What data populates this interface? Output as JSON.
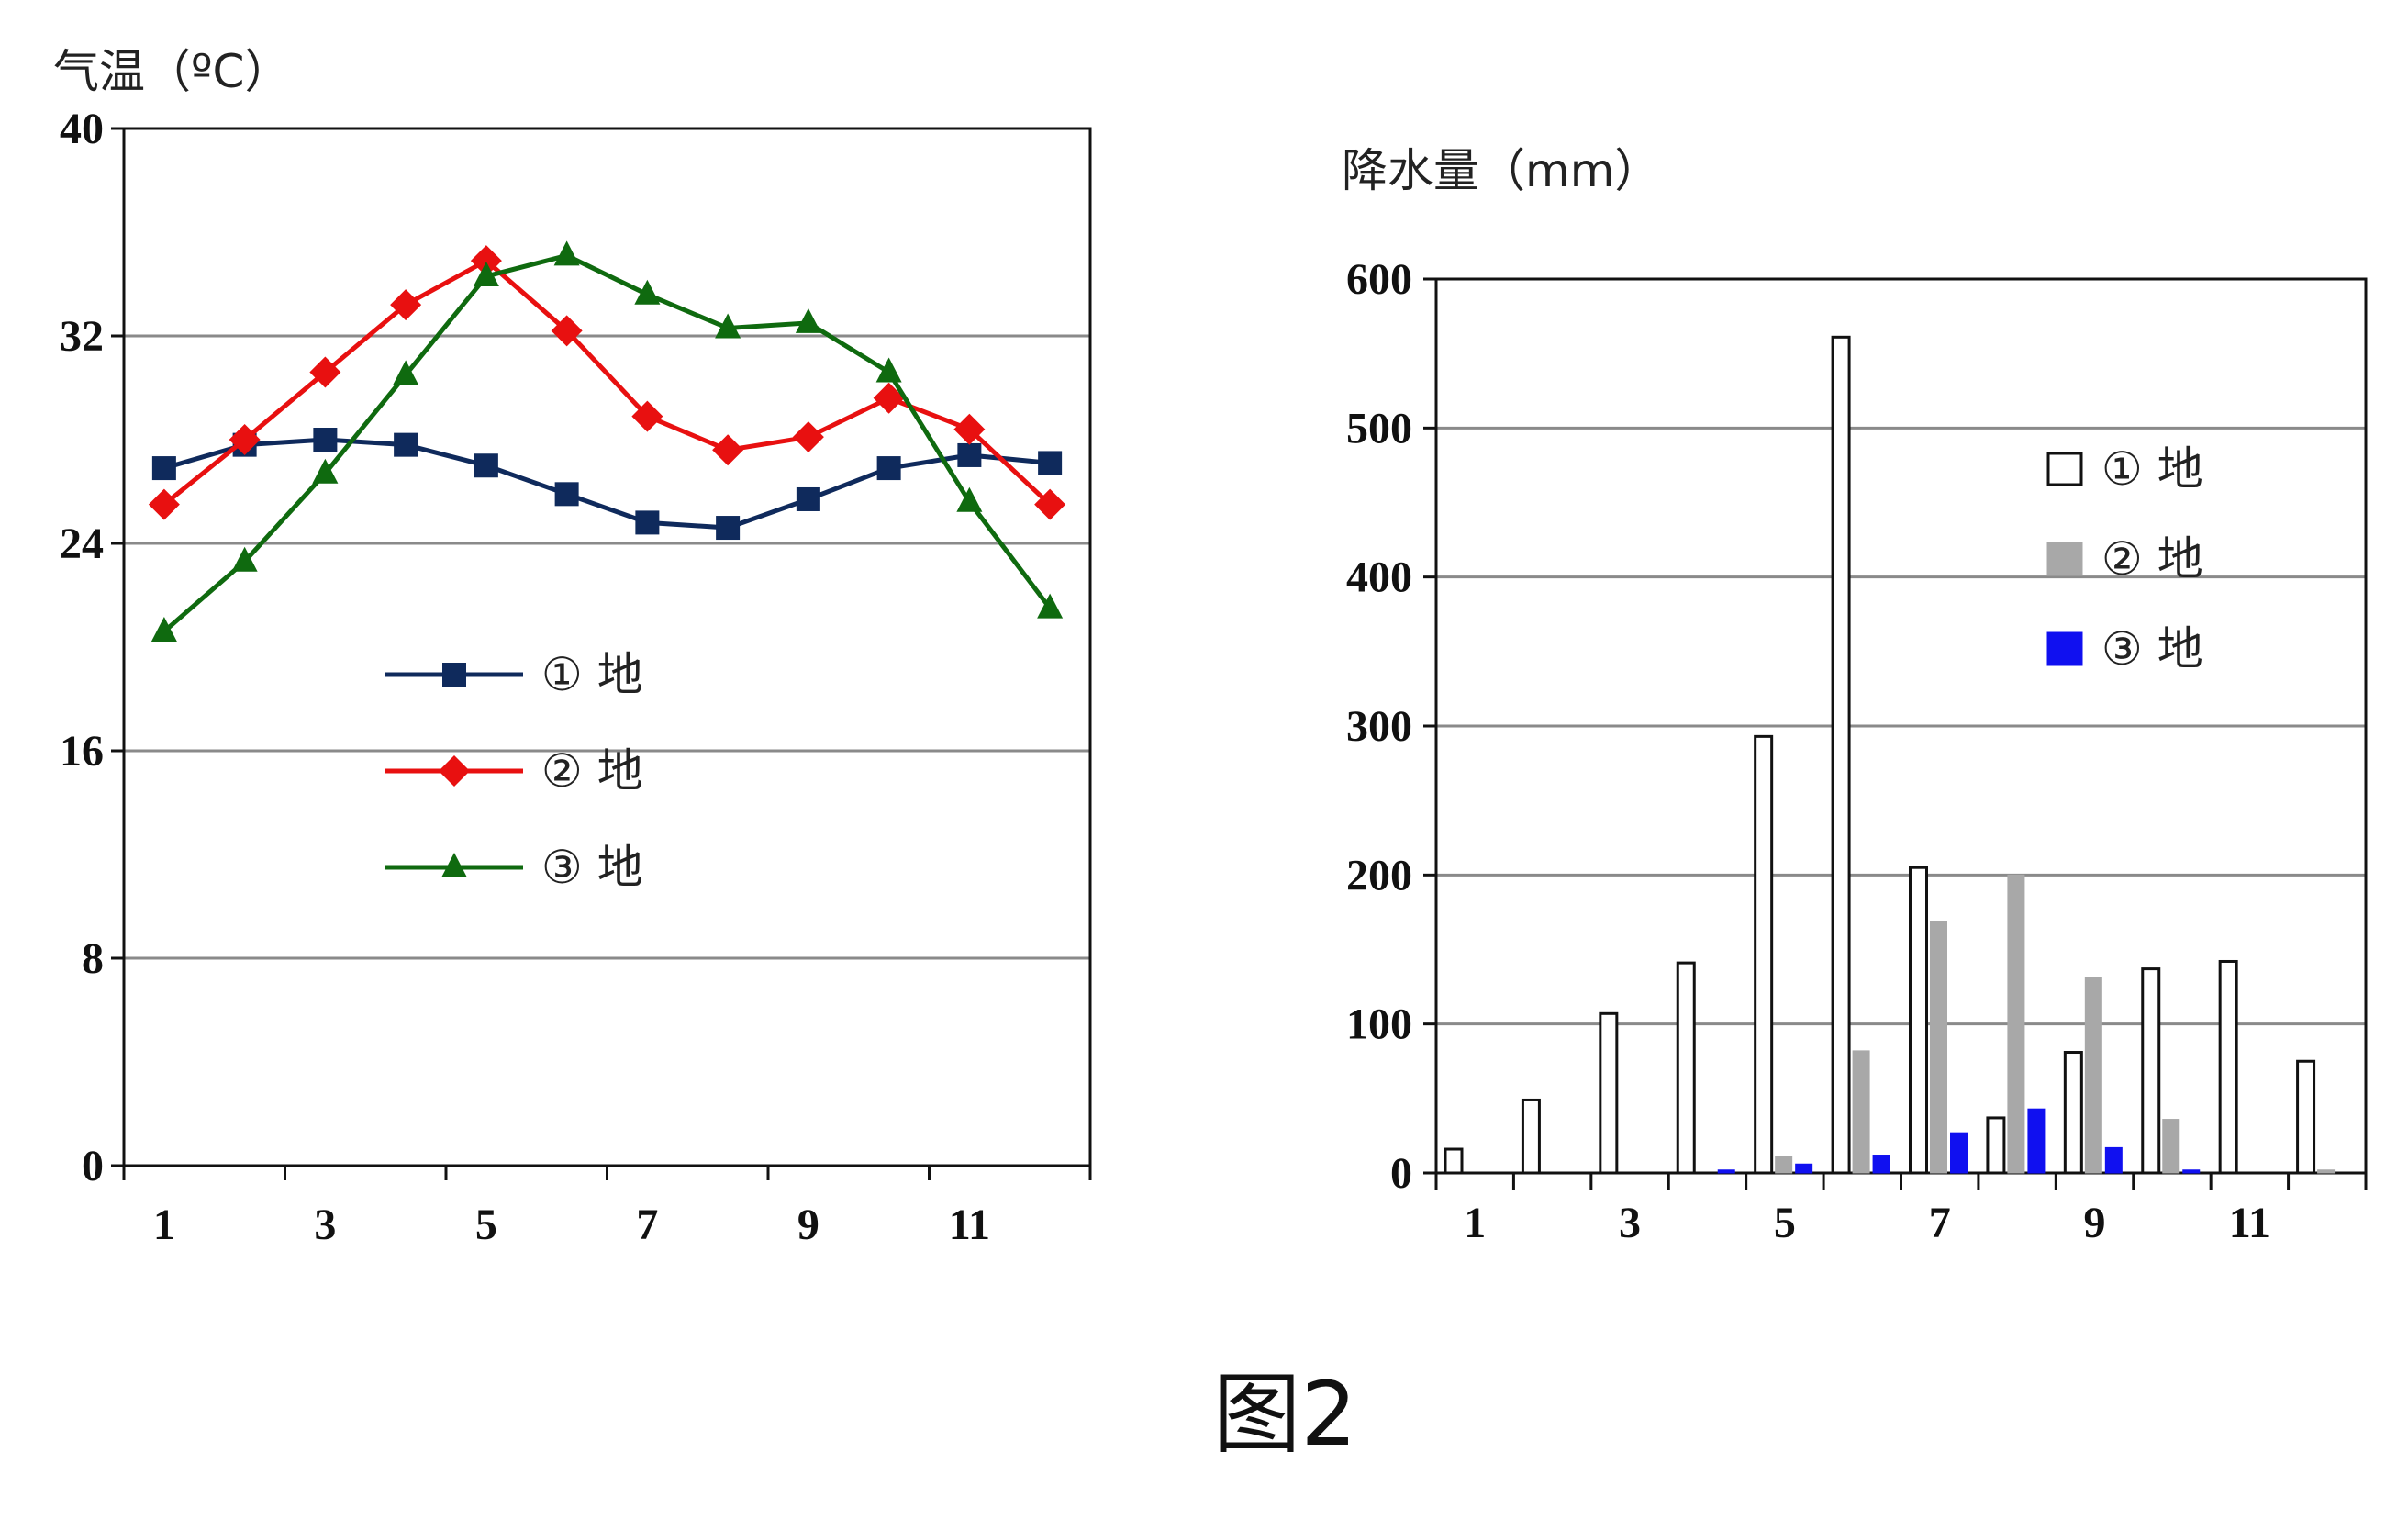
{
  "caption": "图2",
  "chart_data": [
    {
      "type": "line",
      "ylabel": "气温（ºC）",
      "ylim": [
        0,
        40
      ],
      "yticks": [
        0,
        8,
        16,
        24,
        32,
        40
      ],
      "x": [
        1,
        2,
        3,
        4,
        5,
        6,
        7,
        8,
        9,
        10,
        11,
        12
      ],
      "xtick_labels": [
        "1",
        "3",
        "5",
        "7",
        "9",
        "11"
      ],
      "grid": true,
      "legend_position": "center",
      "series": [
        {
          "name": "① 地",
          "color": "#0f2a5c",
          "marker": "square",
          "values": [
            26.9,
            27.8,
            28.0,
            27.8,
            27.0,
            25.9,
            24.8,
            24.6,
            25.7,
            26.9,
            27.4,
            27.1
          ]
        },
        {
          "name": "② 地",
          "color": "#e81010",
          "marker": "diamond",
          "values": [
            25.5,
            28.0,
            30.6,
            33.2,
            34.9,
            32.2,
            28.9,
            27.6,
            28.1,
            29.6,
            28.4,
            25.5
          ]
        },
        {
          "name": "③ 地",
          "color": "#0f6a0f",
          "marker": "triangle",
          "values": [
            20.6,
            23.3,
            26.7,
            30.5,
            34.3,
            35.1,
            33.6,
            32.3,
            32.5,
            30.6,
            25.6,
            21.5
          ]
        }
      ]
    },
    {
      "type": "bar",
      "ylabel": "降水量（mm）",
      "ylim": [
        0,
        600
      ],
      "yticks": [
        0,
        100,
        200,
        300,
        400,
        500,
        600
      ],
      "categories": [
        1,
        2,
        3,
        4,
        5,
        6,
        7,
        8,
        9,
        10,
        11,
        12
      ],
      "xtick_labels": [
        "1",
        "3",
        "5",
        "7",
        "9",
        "11"
      ],
      "grid": true,
      "legend_position": "top-right",
      "series": [
        {
          "name": "① 地",
          "color": "#ffffff",
          "values": [
            16,
            49,
            107,
            141,
            293,
            561,
            205,
            37,
            81,
            137,
            142,
            75
          ]
        },
        {
          "name": "② 地",
          "color": "#a8a8a8",
          "values": [
            0,
            0,
            0,
            0,
            11,
            82,
            169,
            200,
            131,
            36,
            0,
            2
          ]
        },
        {
          "name": "③ 地",
          "color": "#1010f0",
          "values": [
            0,
            0,
            0,
            2,
            6,
            12,
            27,
            43,
            17,
            2,
            0,
            0
          ]
        }
      ]
    }
  ]
}
